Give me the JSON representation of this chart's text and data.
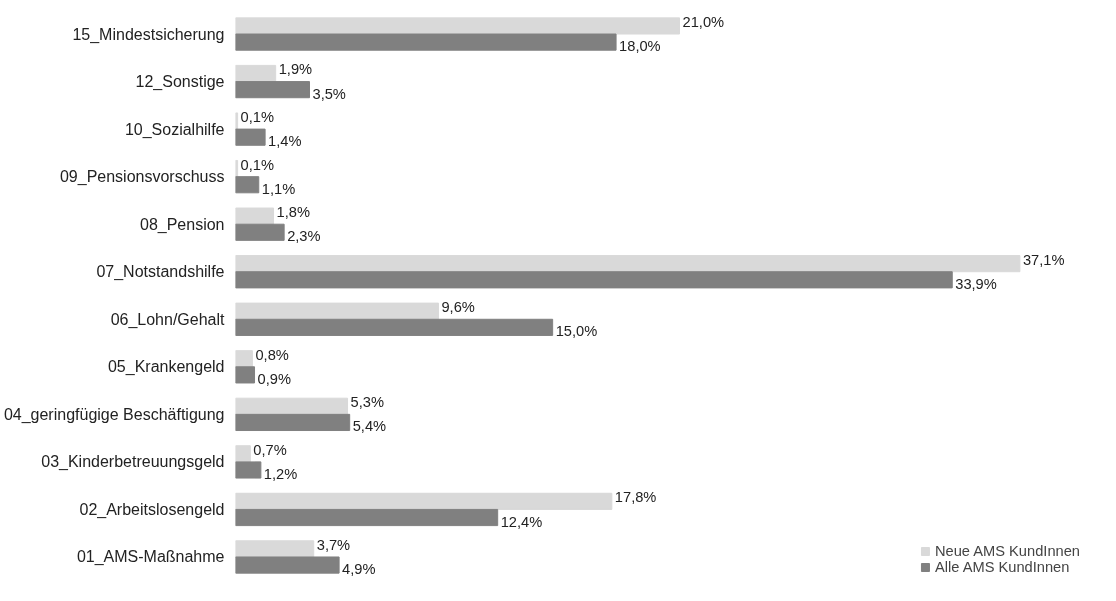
{
  "chart_data": {
    "type": "bar",
    "orientation": "horizontal",
    "categories": [
      "15_Mindestsicherung",
      "12_Sonstige",
      "10_Sozialhilfe",
      "09_Pensionsvorschuss",
      "08_Pension",
      "07_Notstandshilfe",
      "06_Lohn/Gehalt",
      "05_Krankengeld",
      "04_geringfügige Beschäftigung",
      "03_Kinderbetreuungsgeld",
      "02_Arbeitslosengeld",
      "01_AMS-Maßnahme"
    ],
    "series": [
      {
        "name": "Neue AMS KundInnen",
        "color": "#d9d9d9",
        "values": [
          21.0,
          1.9,
          0.1,
          0.1,
          1.8,
          37.1,
          9.6,
          0.8,
          5.3,
          0.7,
          17.8,
          3.7
        ],
        "value_labels": [
          "21,0%",
          "1,9%",
          "0,1%",
          "0,1%",
          "1,8%",
          "37,1%",
          "9,6%",
          "0,8%",
          "5,3%",
          "0,7%",
          "17,8%",
          "3,7%"
        ]
      },
      {
        "name": "Alle AMS KundInnen",
        "color": "#808080",
        "values": [
          18.0,
          3.5,
          1.4,
          1.1,
          2.3,
          33.9,
          15.0,
          0.9,
          5.4,
          1.2,
          12.4,
          4.9
        ],
        "value_labels": [
          "18,0%",
          "3,5%",
          "1,4%",
          "1,1%",
          "2,3%",
          "33,9%",
          "15,0%",
          "0,9%",
          "5,4%",
          "1,2%",
          "12,4%",
          "4,9%"
        ]
      }
    ],
    "legend": "bottom right",
    "grid": false
  }
}
